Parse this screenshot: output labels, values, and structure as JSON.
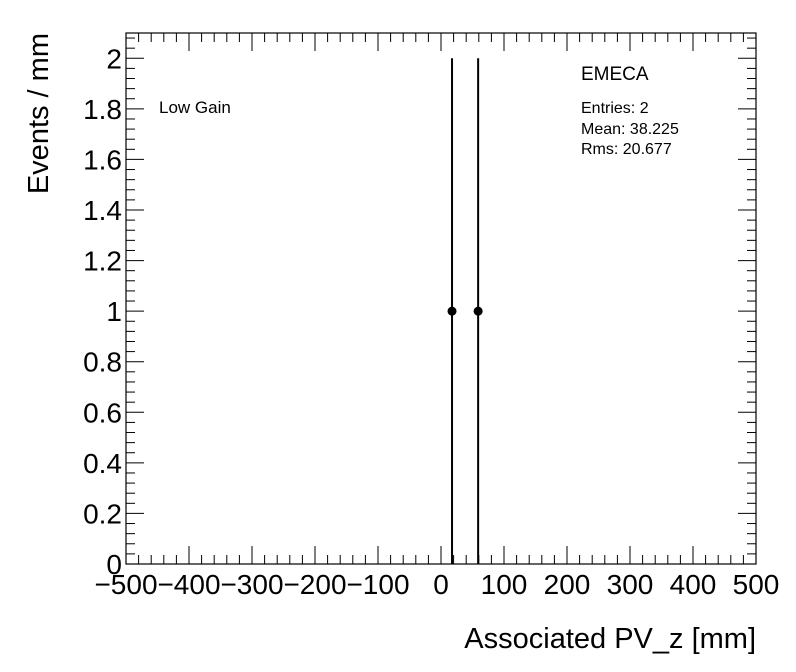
{
  "chart_data": {
    "type": "scatter",
    "title": "",
    "xlabel": "Associated PV_z [mm]",
    "ylabel": "Events / mm",
    "xlim": [
      -500,
      500
    ],
    "ylim": [
      0,
      2.1
    ],
    "grid": false,
    "x_ticks": [
      -500,
      -400,
      -300,
      -200,
      -100,
      0,
      100,
      200,
      300,
      400,
      500
    ],
    "x_tick_labels": [
      "−500",
      "−400",
      "−300",
      "−200",
      "−100",
      "0",
      "100",
      "200",
      "300",
      "400",
      "500"
    ],
    "y_ticks": [
      0,
      0.2,
      0.4,
      0.6,
      0.8,
      1,
      1.2,
      1.4,
      1.6,
      1.8,
      2
    ],
    "y_tick_labels": [
      "0",
      "0.2",
      "0.4",
      "0.6",
      "0.8",
      "1",
      "1.2",
      "1.4",
      "1.6",
      "1.8",
      "2"
    ],
    "series": [
      {
        "points": [
          {
            "x": 17.5,
            "y": 1,
            "err_low": 1,
            "err_high": 1
          },
          {
            "x": 58.95,
            "y": 1,
            "err_low": 1,
            "err_high": 1
          }
        ]
      }
    ],
    "annotations": {
      "gain_label": "Low Gain",
      "region_label": "EMECA",
      "entries": "Entries: 2",
      "mean": "Mean: 38.225",
      "rms": "Rms: 20.677"
    }
  }
}
